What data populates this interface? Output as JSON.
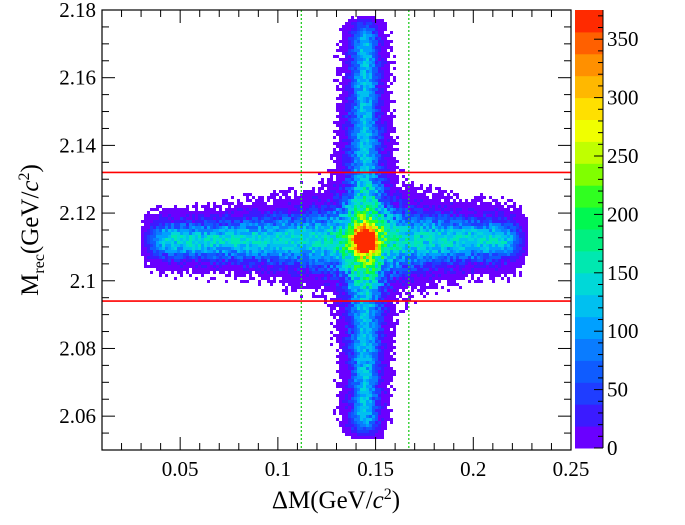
{
  "chart_data": {
    "type": "heatmap",
    "title": "",
    "xlabel": {
      "prefix": "ΔM(GeV/",
      "var": "c",
      "sup": "2",
      "suffix": ")"
    },
    "ylabel": {
      "prefix": "M",
      "sub": "rec",
      "mid": "(GeV/",
      "var": "c",
      "sup": "2",
      "suffix": ")"
    },
    "xlim": [
      0.01,
      0.25
    ],
    "ylim": [
      2.05,
      2.18
    ],
    "x_ticks": [
      {
        "value": 0.05,
        "label": "0.05"
      },
      {
        "value": 0.1,
        "label": "0.1"
      },
      {
        "value": 0.15,
        "label": "0.15"
      },
      {
        "value": 0.2,
        "label": "0.2"
      },
      {
        "value": 0.25,
        "label": "0.25"
      }
    ],
    "y_ticks": [
      {
        "value": 2.06,
        "label": "2.06"
      },
      {
        "value": 2.08,
        "label": "2.08"
      },
      {
        "value": 2.1,
        "label": "2.1"
      },
      {
        "value": 2.12,
        "label": "2.12"
      },
      {
        "value": 2.14,
        "label": "2.14"
      },
      {
        "value": 2.16,
        "label": "2.16"
      },
      {
        "value": 2.18,
        "label": "2.18"
      }
    ],
    "colorbar": {
      "min": 0,
      "max": 375,
      "ticks": [
        {
          "value": 0,
          "label": "0"
        },
        {
          "value": 50,
          "label": "50"
        },
        {
          "value": 100,
          "label": "100"
        },
        {
          "value": 150,
          "label": "150"
        },
        {
          "value": 200,
          "label": "200"
        },
        {
          "value": 250,
          "label": "250"
        },
        {
          "value": 300,
          "label": "300"
        },
        {
          "value": 350,
          "label": "350"
        }
      ],
      "levels": 20,
      "palette": [
        "#6a00ff",
        "#3b1bff",
        "#1f3dff",
        "#0f5cff",
        "#0a7cff",
        "#00a0ff",
        "#00c0f0",
        "#00d8d8",
        "#00e8b0",
        "#00f080",
        "#00f850",
        "#30ff20",
        "#80ff00",
        "#c0ff00",
        "#f0ff00",
        "#ffe000",
        "#ffb800",
        "#ff9000",
        "#ff6000",
        "#ff2a00"
      ]
    },
    "distribution": {
      "peak": {
        "x": 0.1445,
        "y": 2.112
      },
      "vertical_band": {
        "x_center": 0.1445,
        "x_sigma": 0.0042,
        "y_range": [
          2.053,
          2.178
        ],
        "amplitude": 120
      },
      "horizontal_band": {
        "y_center": 2.112,
        "y_sigma": 0.0029,
        "x_range": [
          0.03,
          0.228
        ],
        "amplitude": 140
      },
      "core_amplitude": 370
    },
    "cut_lines": [
      {
        "orientation": "horizontal",
        "value": 2.132,
        "color": "#ff0000",
        "style": "solid"
      },
      {
        "orientation": "horizontal",
        "value": 2.094,
        "color": "#ff0000",
        "style": "solid"
      },
      {
        "orientation": "vertical",
        "value": 0.112,
        "color": "#22cc22",
        "style": "dotted"
      },
      {
        "orientation": "vertical",
        "value": 0.167,
        "color": "#22cc22",
        "style": "dotted"
      }
    ]
  }
}
